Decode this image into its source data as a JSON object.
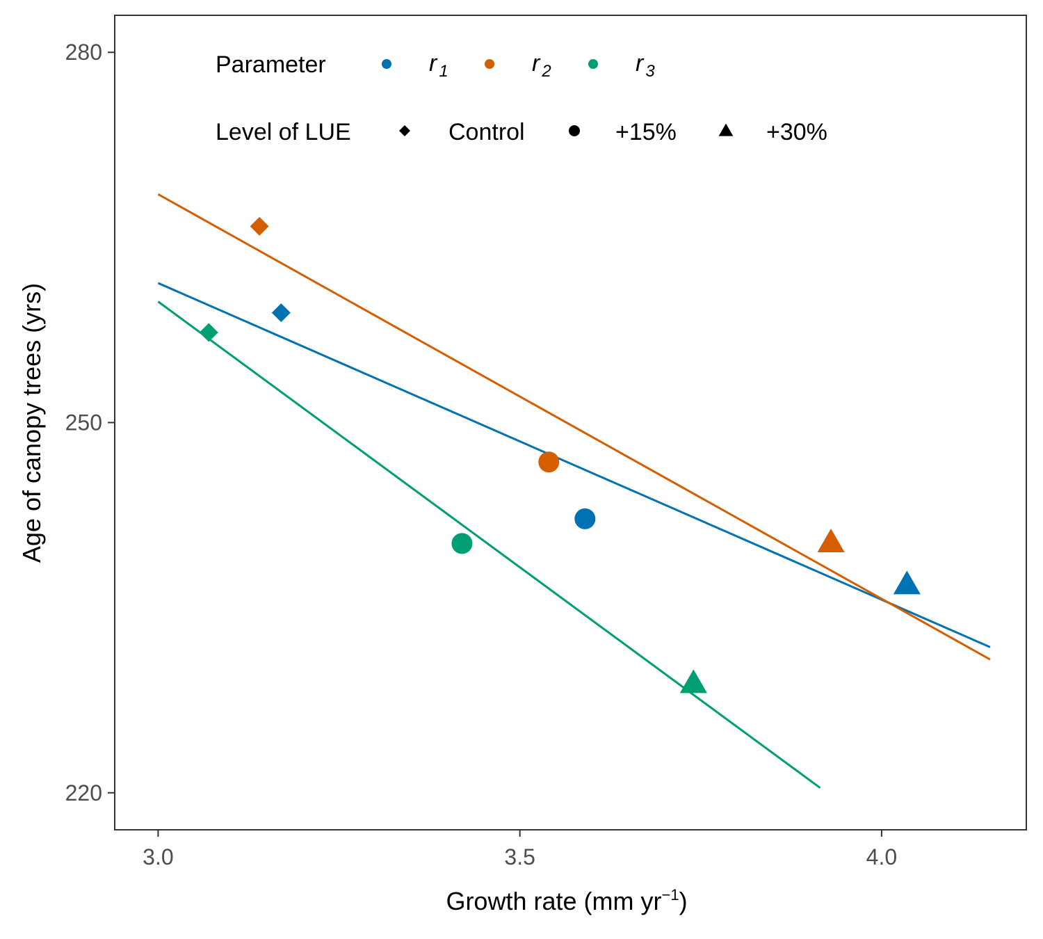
{
  "chart_data": {
    "type": "scatter",
    "xlabel": "Growth rate (mm yr",
    "xlabel_sup": "−1",
    "xlabel_end": ")",
    "ylabel": "Age of canopy trees (yrs)",
    "xlim": [
      2.94,
      4.2
    ],
    "ylim": [
      217,
      283
    ],
    "x_ticks": [
      3.0,
      3.5,
      4.0
    ],
    "x_tick_labels": [
      "3.0",
      "3.5",
      "4.0"
    ],
    "y_ticks": [
      220,
      250,
      280
    ],
    "y_tick_labels": [
      "220",
      "250",
      "280"
    ],
    "grid": false,
    "legend_placement": "top-left",
    "legend": {
      "color_title": "Parameter",
      "shape_title": "Level of LUE",
      "parameters": [
        {
          "base": "r",
          "sub": "1",
          "color": "#0072B2"
        },
        {
          "base": "r",
          "sub": "2",
          "color": "#D55E00"
        },
        {
          "base": "r",
          "sub": "3",
          "color": "#009E73"
        }
      ],
      "levels": [
        {
          "label": "Control",
          "shape": "diamond"
        },
        {
          "label": "+15%",
          "shape": "circle"
        },
        {
          "label": "+30%",
          "shape": "triangle"
        }
      ]
    },
    "series": [
      {
        "parameter": "r1",
        "color": "#0072B2",
        "points": [
          {
            "x": 3.17,
            "y": 258.9,
            "level": "Control"
          },
          {
            "x": 3.59,
            "y": 242.2,
            "level": "+15%"
          },
          {
            "x": 4.035,
            "y": 236.9,
            "level": "+30%"
          }
        ],
        "fit": {
          "x": [
            3.0,
            4.15
          ],
          "y": [
            261.3,
            231.8
          ]
        }
      },
      {
        "parameter": "r2",
        "color": "#D55E00",
        "points": [
          {
            "x": 3.14,
            "y": 265.9,
            "level": "Control"
          },
          {
            "x": 3.54,
            "y": 246.8,
            "level": "+15%"
          },
          {
            "x": 3.93,
            "y": 240.3,
            "level": "+30%"
          }
        ],
        "fit": {
          "x": [
            3.0,
            4.15
          ],
          "y": [
            268.5,
            230.8
          ]
        }
      },
      {
        "parameter": "r3",
        "color": "#009E73",
        "points": [
          {
            "x": 3.07,
            "y": 257.3,
            "level": "Control"
          },
          {
            "x": 3.42,
            "y": 240.2,
            "level": "+15%"
          },
          {
            "x": 3.74,
            "y": 228.9,
            "level": "+30%"
          }
        ],
        "fit": {
          "x": [
            3.0,
            3.915
          ],
          "y": [
            259.8,
            220.4
          ]
        }
      }
    ]
  }
}
